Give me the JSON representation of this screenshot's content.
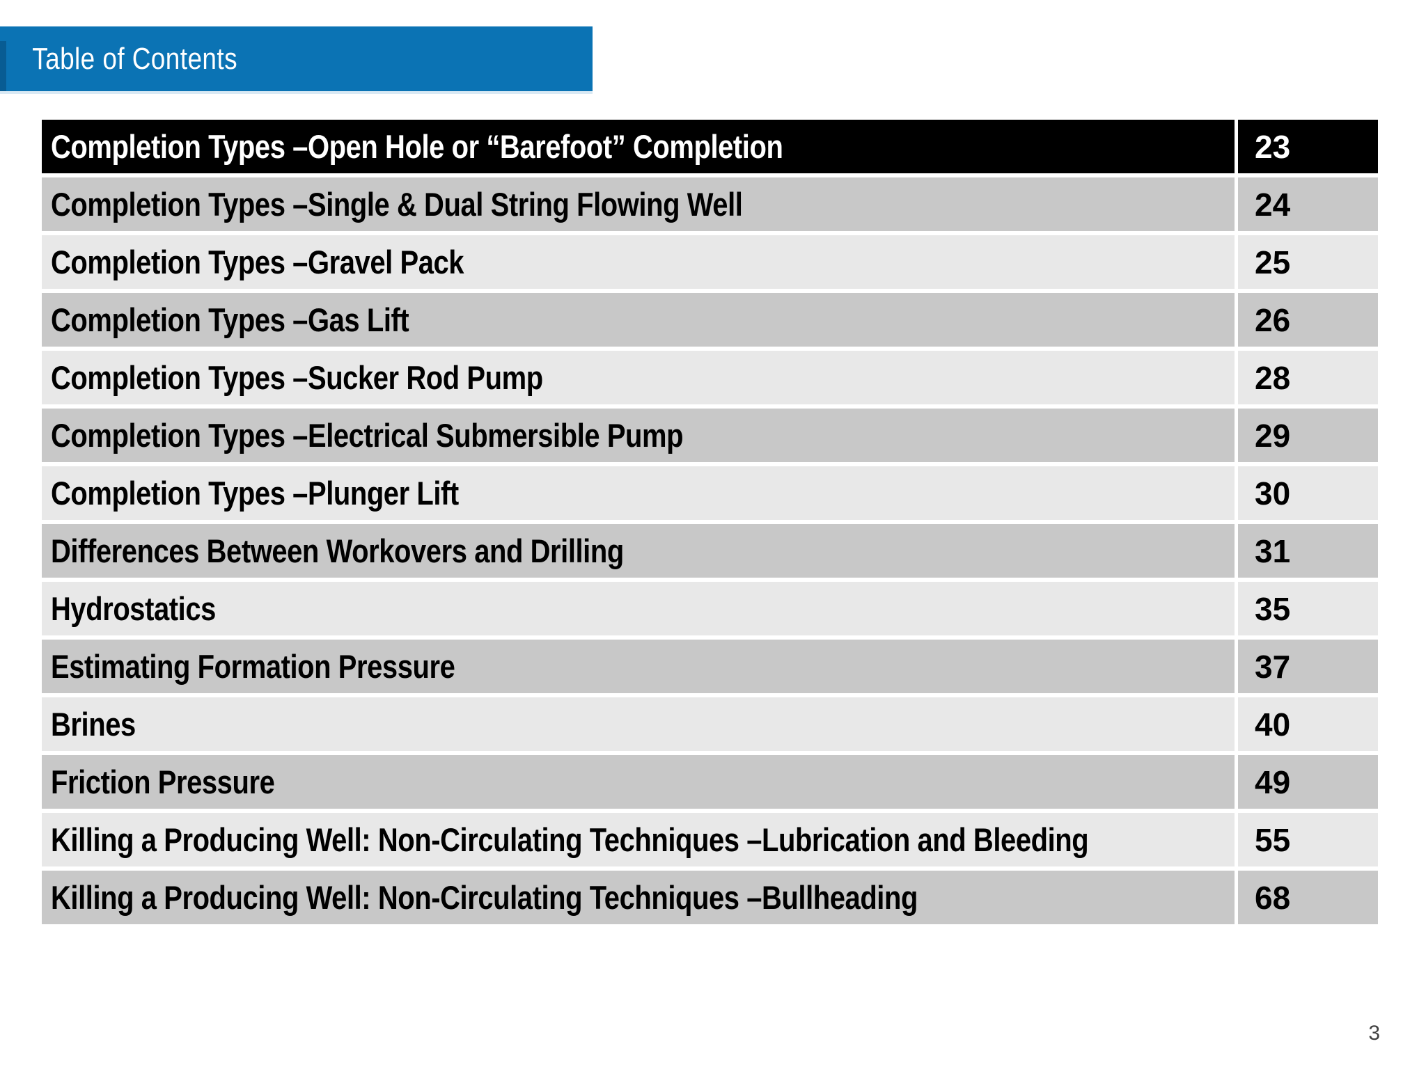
{
  "slide": {
    "header": {
      "title": "Table of Contents"
    },
    "footer": {
      "page_number": "3"
    }
  },
  "colors": {
    "header_blue": "#0b73b4",
    "header_accent_dark_blue": "#085c93",
    "header_underline": "#d9e9f4",
    "first_row_bg": "#000000",
    "first_row_text": "#ffffff",
    "band_dark": "#c8c8c8",
    "band_light": "#e8e8e8",
    "row_text": "#000000",
    "footer_text": "#404040"
  },
  "toc": {
    "entries": [
      {
        "title": "Completion Types –Open Hole or “Barefoot” Completion",
        "page": "23"
      },
      {
        "title": "Completion Types –Single & Dual String Flowing Well",
        "page": "24"
      },
      {
        "title": "Completion Types –Gravel Pack",
        "page": "25"
      },
      {
        "title": "Completion Types –Gas Lift",
        "page": "26"
      },
      {
        "title": "Completion Types –Sucker Rod Pump",
        "page": "28"
      },
      {
        "title": "Completion Types –Electrical Submersible Pump",
        "page": "29"
      },
      {
        "title": "Completion Types –Plunger Lift",
        "page": "30"
      },
      {
        "title": "Differences Between Workovers and Drilling",
        "page": "31"
      },
      {
        "title": "Hydrostatics",
        "page": "35"
      },
      {
        "title": "Estimating Formation Pressure",
        "page": "37"
      },
      {
        "title": "Brines",
        "page": "40"
      },
      {
        "title": "Friction Pressure",
        "page": "49"
      },
      {
        "title": "Killing a Producing Well: Non-Circulating Techniques –Lubrication and Bleeding",
        "page": "55"
      },
      {
        "title": "Killing a Producing Well: Non-Circulating Techniques –Bullheading",
        "page": "68"
      }
    ]
  }
}
